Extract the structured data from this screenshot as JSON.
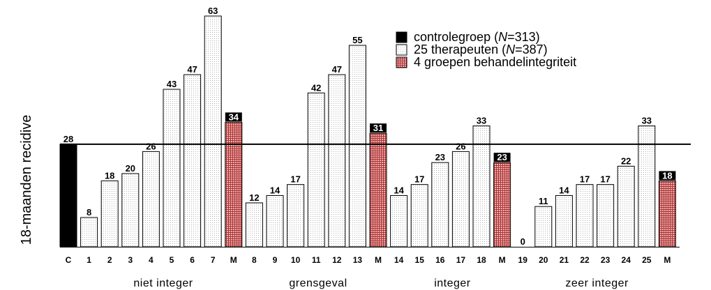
{
  "chart_data": {
    "type": "bar",
    "ylabel": "18-maanden recidive",
    "ylim": [
      0,
      63
    ],
    "grid": false,
    "reference_line": {
      "value": 28
    },
    "legend": {
      "position": "top-right",
      "entries": [
        {
          "kind": "control",
          "label_pre": "controlegroep (",
          "label_italic": "N",
          "label_post": "=313)"
        },
        {
          "kind": "therapist",
          "label_pre": "25 therapeuten (",
          "label_italic": "N",
          "label_post": "=387)"
        },
        {
          "kind": "group",
          "label_pre": "4 groepen behandelintegriteit",
          "label_italic": "",
          "label_post": ""
        }
      ]
    },
    "bars": [
      {
        "label": "C",
        "value": 28,
        "kind": "control"
      },
      {
        "label": "1",
        "value": 8,
        "kind": "therapist"
      },
      {
        "label": "2",
        "value": 18,
        "kind": "therapist"
      },
      {
        "label": "3",
        "value": 20,
        "kind": "therapist"
      },
      {
        "label": "4",
        "value": 26,
        "kind": "therapist"
      },
      {
        "label": "5",
        "value": 43,
        "kind": "therapist"
      },
      {
        "label": "6",
        "value": 47,
        "kind": "therapist"
      },
      {
        "label": "7",
        "value": 63,
        "kind": "therapist"
      },
      {
        "label": "M",
        "value": 34,
        "kind": "group"
      },
      {
        "label": "8",
        "value": 12,
        "kind": "therapist"
      },
      {
        "label": "9",
        "value": 14,
        "kind": "therapist"
      },
      {
        "label": "10",
        "value": 17,
        "kind": "therapist"
      },
      {
        "label": "11",
        "value": 42,
        "kind": "therapist"
      },
      {
        "label": "12",
        "value": 47,
        "kind": "therapist"
      },
      {
        "label": "13",
        "value": 55,
        "kind": "therapist"
      },
      {
        "label": "M",
        "value": 31,
        "kind": "group"
      },
      {
        "label": "14",
        "value": 14,
        "kind": "therapist"
      },
      {
        "label": "15",
        "value": 17,
        "kind": "therapist"
      },
      {
        "label": "16",
        "value": 23,
        "kind": "therapist"
      },
      {
        "label": "17",
        "value": 26,
        "kind": "therapist"
      },
      {
        "label": "18",
        "value": 33,
        "kind": "therapist"
      },
      {
        "label": "M",
        "value": 23,
        "kind": "group"
      },
      {
        "label": "19",
        "value": 0,
        "kind": "therapist"
      },
      {
        "label": "20",
        "value": 11,
        "kind": "therapist"
      },
      {
        "label": "21",
        "value": 14,
        "kind": "therapist"
      },
      {
        "label": "22",
        "value": 17,
        "kind": "therapist"
      },
      {
        "label": "23",
        "value": 17,
        "kind": "therapist"
      },
      {
        "label": "24",
        "value": 22,
        "kind": "therapist"
      },
      {
        "label": "25",
        "value": 33,
        "kind": "therapist"
      },
      {
        "label": "M",
        "value": 18,
        "kind": "group"
      }
    ],
    "groups": [
      {
        "label": "niet integer",
        "first": 1,
        "last": 8
      },
      {
        "label": "grensgeval",
        "first": 9,
        "last": 15
      },
      {
        "label": "integer",
        "first": 16,
        "last": 21
      },
      {
        "label": "zeer integer",
        "first": 22,
        "last": 29
      }
    ],
    "colors": {
      "control": "#000000",
      "therapist_fill": "#ffffff",
      "therapist_dots": "#b0b0b0",
      "group_fill": "#e8b4b4",
      "group_hatch": "#b03030",
      "group_label_bg": "#000000",
      "group_label_text": "#ffffff",
      "text": "#000000"
    }
  }
}
